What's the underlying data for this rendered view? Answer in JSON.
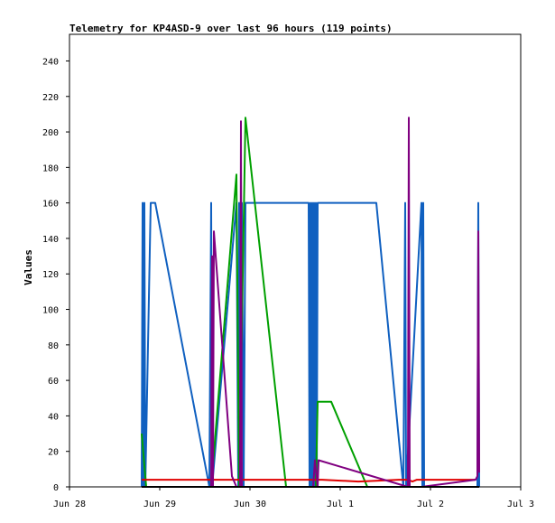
{
  "chart_data": {
    "type": "line",
    "title": "Telemetry for KP4ASD-9 over last 96 hours (119 points)",
    "xlabel": "",
    "ylabel": "Values",
    "xlim": [
      0,
      5
    ],
    "ylim": [
      0,
      255
    ],
    "x_ticks": [
      {
        "x": 0,
        "label": "Jun 28"
      },
      {
        "x": 1,
        "label": "Jun 29"
      },
      {
        "x": 2,
        "label": "Jun 30"
      },
      {
        "x": 3,
        "label": "Jul 1"
      },
      {
        "x": 4,
        "label": "Jul 2"
      },
      {
        "x": 5,
        "label": "Jul 3"
      }
    ],
    "y_ticks": [
      0,
      20,
      40,
      60,
      80,
      100,
      120,
      140,
      160,
      180,
      200,
      220,
      240
    ],
    "grid": false,
    "legend": "none",
    "series": [
      {
        "color": "#1060c0",
        "points": [
          [
            0.8,
            0
          ],
          [
            0.81,
            160
          ],
          [
            0.82,
            0
          ],
          [
            0.83,
            160
          ],
          [
            0.84,
            0
          ],
          [
            0.9,
            160
          ],
          [
            0.95,
            160
          ],
          [
            1.55,
            0
          ],
          [
            1.57,
            160
          ],
          [
            1.58,
            0
          ],
          [
            1.85,
            160
          ],
          [
            1.87,
            0
          ],
          [
            1.88,
            160
          ],
          [
            1.9,
            0
          ],
          [
            1.91,
            160
          ],
          [
            1.93,
            0
          ],
          [
            1.95,
            160
          ],
          [
            2.6,
            160
          ],
          [
            2.65,
            160
          ],
          [
            2.66,
            0
          ],
          [
            2.67,
            160
          ],
          [
            2.68,
            0
          ],
          [
            2.69,
            160
          ],
          [
            2.7,
            0
          ],
          [
            2.71,
            160
          ],
          [
            2.72,
            0
          ],
          [
            2.73,
            160
          ],
          [
            2.74,
            0
          ],
          [
            2.75,
            160
          ],
          [
            3.4,
            160
          ],
          [
            3.7,
            0
          ],
          [
            3.72,
            160
          ],
          [
            3.73,
            0
          ],
          [
            3.9,
            160
          ],
          [
            3.91,
            0
          ],
          [
            3.92,
            160
          ],
          [
            3.93,
            0
          ],
          [
            4.52,
            0
          ],
          [
            4.53,
            160
          ],
          [
            4.54,
            0
          ]
        ]
      },
      {
        "color": "#00a000",
        "points": [
          [
            0.8,
            30
          ],
          [
            0.85,
            0
          ],
          [
            1.57,
            0
          ],
          [
            1.85,
            176
          ],
          [
            1.88,
            0
          ],
          [
            1.95,
            208
          ],
          [
            2.4,
            0
          ],
          [
            2.5,
            0
          ],
          [
            2.73,
            0
          ],
          [
            2.75,
            48
          ],
          [
            2.9,
            48
          ],
          [
            3.3,
            0
          ],
          [
            3.5,
            0
          ]
        ]
      },
      {
        "color": "#e00000",
        "points": [
          [
            0.8,
            4
          ],
          [
            1.5,
            4
          ],
          [
            2.5,
            4
          ],
          [
            2.6,
            4
          ],
          [
            2.7,
            4
          ],
          [
            2.8,
            4
          ],
          [
            3.2,
            3
          ],
          [
            3.65,
            4
          ],
          [
            3.75,
            4
          ],
          [
            3.8,
            3
          ],
          [
            3.85,
            4
          ],
          [
            4.5,
            4
          ]
        ]
      },
      {
        "color": "#800080",
        "points": [
          [
            1.57,
            0
          ],
          [
            1.58,
            130
          ],
          [
            1.59,
            0
          ],
          [
            1.6,
            144
          ],
          [
            1.8,
            6
          ],
          [
            1.85,
            0
          ],
          [
            1.89,
            0
          ],
          [
            1.9,
            206
          ],
          [
            1.91,
            0
          ],
          [
            2.7,
            0
          ],
          [
            2.72,
            15
          ],
          [
            2.75,
            0
          ],
          [
            2.76,
            15
          ],
          [
            3.75,
            0
          ],
          [
            3.76,
            208
          ],
          [
            3.77,
            0
          ],
          [
            3.9,
            0
          ],
          [
            4.5,
            4
          ],
          [
            4.52,
            6
          ],
          [
            4.53,
            144
          ],
          [
            4.54,
            8
          ]
        ]
      },
      {
        "color": "#000000",
        "points": [
          [
            0.8,
            0
          ],
          [
            4.54,
            0
          ]
        ]
      }
    ]
  }
}
